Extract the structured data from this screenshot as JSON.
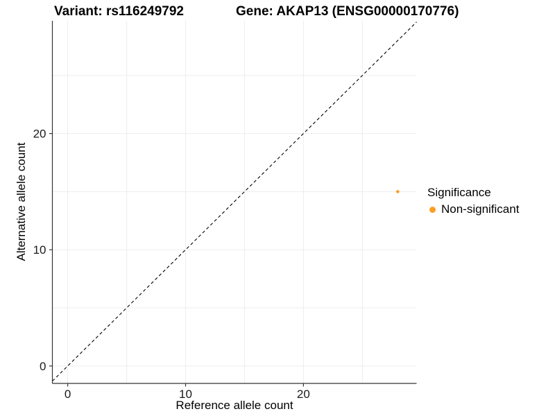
{
  "chart_data": {
    "type": "scatter",
    "titles": [
      "Variant: rs116249792",
      "Gene: AKAP13 (ENSG00000170776)"
    ],
    "xlabel": "Reference allele count",
    "ylabel": "Alternative allele count",
    "xlim": [
      -1.3,
      29.6
    ],
    "ylim": [
      -1.5,
      29.7
    ],
    "xticks": [
      0,
      10,
      20
    ],
    "yticks": [
      0,
      10,
      20
    ],
    "grid": {
      "show": true,
      "step": 5,
      "color": "#ededed"
    },
    "reference_line": {
      "equation": "y = x",
      "style": "dashed",
      "color": "#000000"
    },
    "series": [
      {
        "name": "Non-significant",
        "color": "#fb9e24",
        "points": [
          {
            "x": 28,
            "y": 15
          }
        ]
      }
    ],
    "legend": {
      "title": "Significance",
      "position": "right",
      "entries": [
        {
          "label": "Non-significant",
          "color": "#fb9e24"
        }
      ]
    },
    "axis_color": "#333333"
  }
}
